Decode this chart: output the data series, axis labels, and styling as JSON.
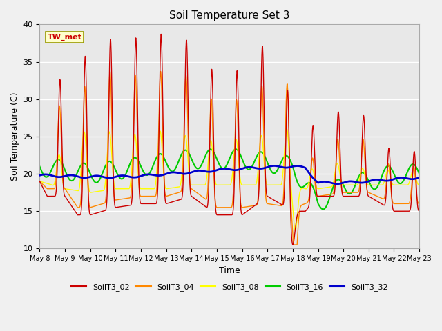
{
  "title": "Soil Temperature Set 3",
  "xlabel": "Time",
  "ylabel": "Soil Temperature (C)",
  "annotation": "TW_met",
  "ylim": [
    10,
    40
  ],
  "series_colors": {
    "SoilT3_02": "#cc0000",
    "SoilT3_04": "#ff8800",
    "SoilT3_08": "#ffff00",
    "SoilT3_16": "#00cc00",
    "SoilT3_32": "#0000cc"
  },
  "bg_color": "#e8e8e8",
  "tick_labels": [
    "May 8",
    "May 9",
    "May 10",
    "May 11",
    "May 12",
    "May 13",
    "May 14",
    "May 15",
    "May 16",
    "May 17",
    "May 18",
    "May 19",
    "May 20",
    "May 21",
    "May 22",
    "May 23"
  ]
}
